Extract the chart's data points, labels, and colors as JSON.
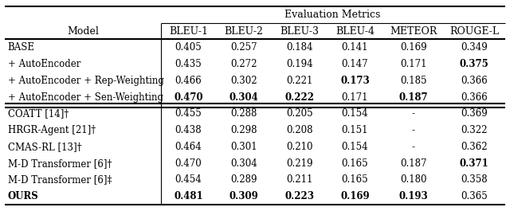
{
  "title": "Evaluation Metrics",
  "col_headers": [
    "Model",
    "BLEU-1",
    "BLEU-2",
    "BLEU-3",
    "BLEU-4",
    "METEOR",
    "ROUGE-L"
  ],
  "group1": {
    "rows": [
      {
        "model": "BASE",
        "vals": [
          "0.405",
          "0.257",
          "0.184",
          "0.141",
          "0.169",
          "0.349"
        ],
        "bold": [
          false,
          false,
          false,
          false,
          false,
          false
        ]
      },
      {
        "model": "+ AutoEncoder",
        "vals": [
          "0.435",
          "0.272",
          "0.194",
          "0.147",
          "0.171",
          "0.375"
        ],
        "bold": [
          false,
          false,
          false,
          false,
          false,
          true
        ]
      },
      {
        "model": "+ AutoEncoder + Rep-Weighting",
        "vals": [
          "0.466",
          "0.302",
          "0.221",
          "0.173",
          "0.185",
          "0.366"
        ],
        "bold": [
          false,
          false,
          false,
          true,
          false,
          false
        ]
      },
      {
        "model": "+ AutoEncoder + Sen-Weighting",
        "vals": [
          "0.470",
          "0.304",
          "0.222",
          "0.171",
          "0.187",
          "0.366"
        ],
        "bold": [
          true,
          true,
          true,
          false,
          true,
          false
        ]
      }
    ]
  },
  "group2": {
    "rows": [
      {
        "model": "COATT [14]†",
        "vals": [
          "0.455",
          "0.288",
          "0.205",
          "0.154",
          "-",
          "0.369"
        ],
        "bold": [
          false,
          false,
          false,
          false,
          false,
          false
        ]
      },
      {
        "model": "HRGR-Agent [21]†",
        "vals": [
          "0.438",
          "0.298",
          "0.208",
          "0.151",
          "-",
          "0.322"
        ],
        "bold": [
          false,
          false,
          false,
          false,
          false,
          false
        ]
      },
      {
        "model": "CMAS-RL [13]†",
        "vals": [
          "0.464",
          "0.301",
          "0.210",
          "0.154",
          "-",
          "0.362"
        ],
        "bold": [
          false,
          false,
          false,
          false,
          false,
          false
        ]
      },
      {
        "model": "M-D Transformer [6]†",
        "vals": [
          "0.470",
          "0.304",
          "0.219",
          "0.165",
          "0.187",
          "0.371"
        ],
        "bold": [
          false,
          false,
          false,
          false,
          false,
          true
        ]
      },
      {
        "model": "M-D Transformer [6]‡",
        "vals": [
          "0.454",
          "0.289",
          "0.211",
          "0.165",
          "0.180",
          "0.358"
        ],
        "bold": [
          false,
          false,
          false,
          false,
          false,
          false
        ]
      },
      {
        "model": "OURS",
        "vals": [
          "0.481",
          "0.309",
          "0.223",
          "0.169",
          "0.193",
          "0.365"
        ],
        "bold": [
          true,
          true,
          true,
          true,
          true,
          false
        ]
      }
    ]
  },
  "bg_color": "#ffffff",
  "text_color": "#000000",
  "header_fontsize": 9,
  "cell_fontsize": 8.5
}
